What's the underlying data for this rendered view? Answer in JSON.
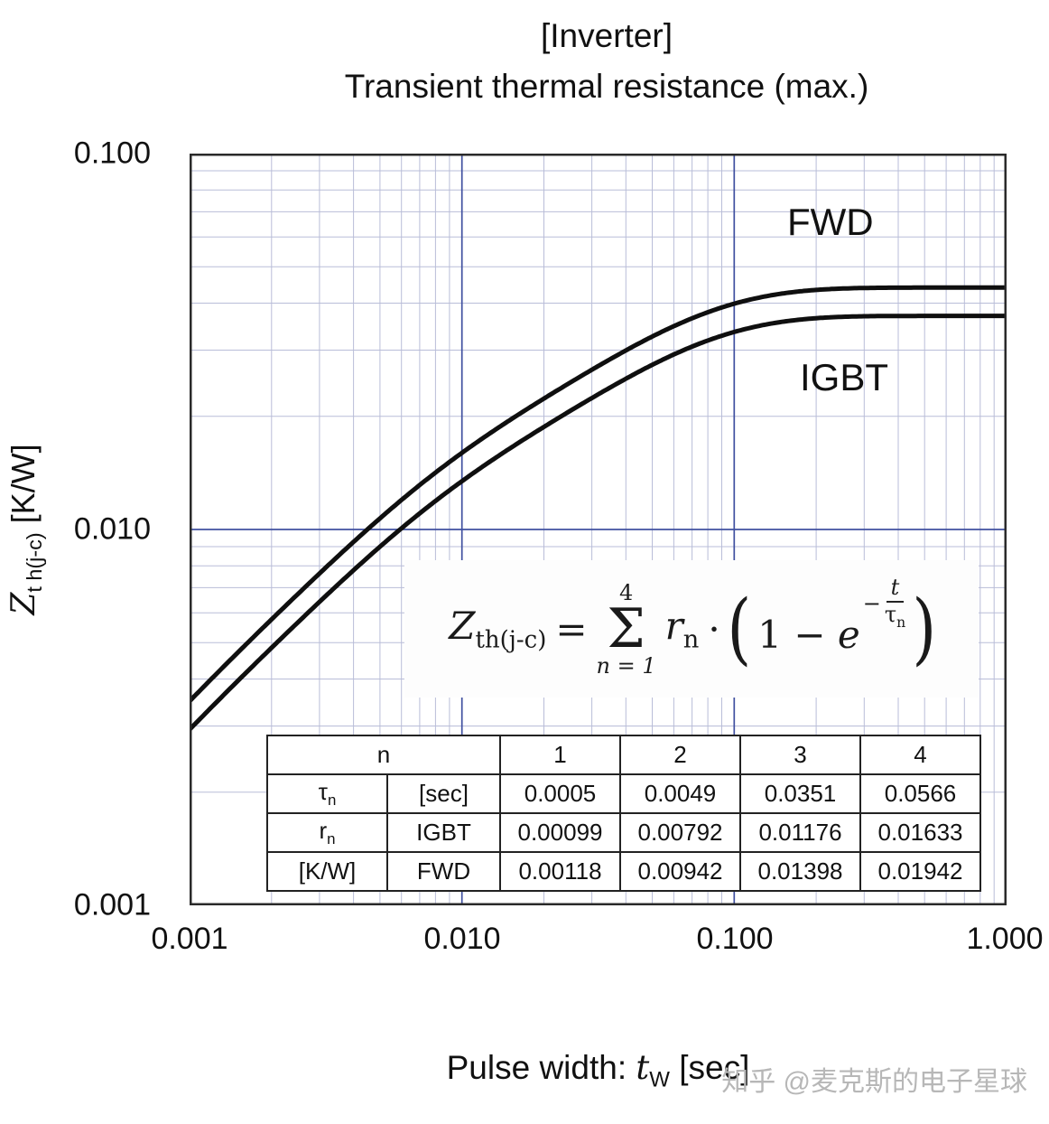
{
  "title": {
    "line1": "[Inverter]",
    "line2": "Transient thermal resistance (max.)"
  },
  "y_axis": {
    "var": "Z",
    "sub": "t h(j-c)",
    "unit": " [K/W]",
    "ticks": [
      "0.100",
      "0.010",
      "0.001"
    ]
  },
  "x_axis": {
    "prefix": "Pulse width: ",
    "var": "t",
    "sub": "W",
    "unit": " [sec]",
    "ticks": [
      "0.001",
      "0.010",
      "0.100",
      "1.000"
    ]
  },
  "curve_labels": {
    "fwd": "FWD",
    "igbt": "IGBT"
  },
  "formula": {
    "lhs": "Z",
    "lhs_sub": "th(j-c)",
    "equals": "=",
    "sum_upper": "4",
    "sum_sigma": "Σ",
    "sum_lower": "n = 1",
    "term": "r",
    "term_sub": "n",
    "dot": "·",
    "open_paren": "(",
    "one": "1",
    "minus": " − ",
    "e": "e",
    "exp_sign": "−",
    "exp_num": "t",
    "exp_den": "τ",
    "exp_den_sub": "n",
    "close_paren": ")"
  },
  "table": {
    "n_label": "n",
    "n_values": [
      "1",
      "2",
      "3",
      "4"
    ],
    "tau": {
      "symbol": "τ",
      "symbol_sub": "n",
      "unit": "[sec]",
      "values": [
        "0.0005",
        "0.0049",
        "0.0351",
        "0.0566"
      ]
    },
    "r": {
      "symbol": "r",
      "symbol_sub": "n",
      "unit": "[K/W]",
      "igbt_label": "IGBT",
      "igbt_values": [
        "0.00099",
        "0.00792",
        "0.01176",
        "0.01633"
      ],
      "fwd_label": "FWD",
      "fwd_values": [
        "0.00118",
        "0.00942",
        "0.01398",
        "0.01942"
      ]
    }
  },
  "watermark": "知乎 @麦克斯的电子星球",
  "chart_data": {
    "type": "line",
    "title": "[Inverter] Transient thermal resistance (max.)",
    "xlabel": "Pulse width: tW [sec]",
    "ylabel": "Zth(j-c) [K/W]",
    "x_scale": "log",
    "y_scale": "log",
    "xlim": [
      0.001,
      1.0
    ],
    "ylim": [
      0.001,
      0.1
    ],
    "grid": "log-log with minor gridlines; decade lines emphasized",
    "legend_position": "labels on chart (FWD upper curve, IGBT lower curve)",
    "model": "Zth(j-c)(t) = sum n=1..4 of rn · (1 − exp(−t/τn))",
    "tau_sec": [
      0.0005,
      0.0049,
      0.0351,
      0.0566
    ],
    "series": [
      {
        "name": "FWD",
        "r_KW": [
          0.00118,
          0.00942,
          0.01398,
          0.01942
        ],
        "steady_state_KW": 0.044
      },
      {
        "name": "IGBT",
        "r_KW": [
          0.00099,
          0.00792,
          0.01176,
          0.01633
        ],
        "steady_state_KW": 0.037
      }
    ]
  }
}
